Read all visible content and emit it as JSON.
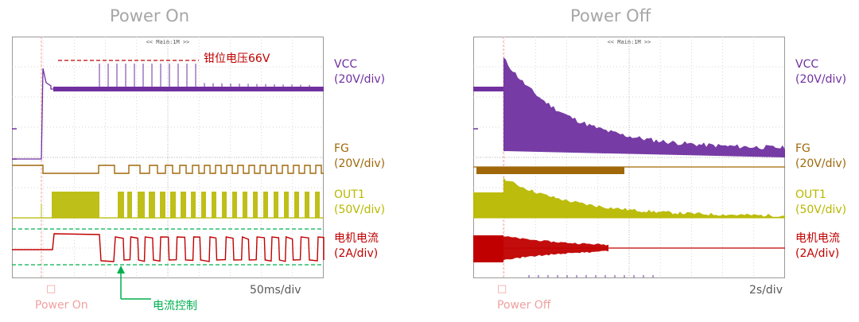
{
  "chart_data": [
    {
      "type": "line",
      "title": "Power On",
      "scope_header": "<< Main:1M >>",
      "time_div": "50ms/div",
      "trigger_marker": "Power On",
      "trigger_glyph": "□",
      "clamp_annotation": "钳位电压66V",
      "current_annotation": "电流控制",
      "channels": [
        {
          "name": "VCC",
          "scale": "(20V/div)",
          "color": "#7030a0"
        },
        {
          "name": "FG",
          "scale": "(20V/div)",
          "color": "#a0680a"
        },
        {
          "name": "OUT1",
          "scale": "(50V/div)",
          "color": "#b8b800"
        },
        {
          "name": "电机电流",
          "scale": "(2A/div)",
          "color": "#c00000"
        }
      ]
    },
    {
      "type": "line",
      "title": "Power Off",
      "scope_header": "<< Main:1M >>",
      "time_div": "2s/div",
      "trigger_marker": "Power Off",
      "trigger_glyph": "□",
      "channels": [
        {
          "name": "VCC",
          "scale": "(20V/div)",
          "color": "#7030a0"
        },
        {
          "name": "FG",
          "scale": "(20V/div)",
          "color": "#a0680a"
        },
        {
          "name": "OUT1",
          "scale": "(50V/div)",
          "color": "#b8b800"
        },
        {
          "name": "电机电流",
          "scale": "(2A/div)",
          "color": "#c00000"
        }
      ]
    }
  ]
}
